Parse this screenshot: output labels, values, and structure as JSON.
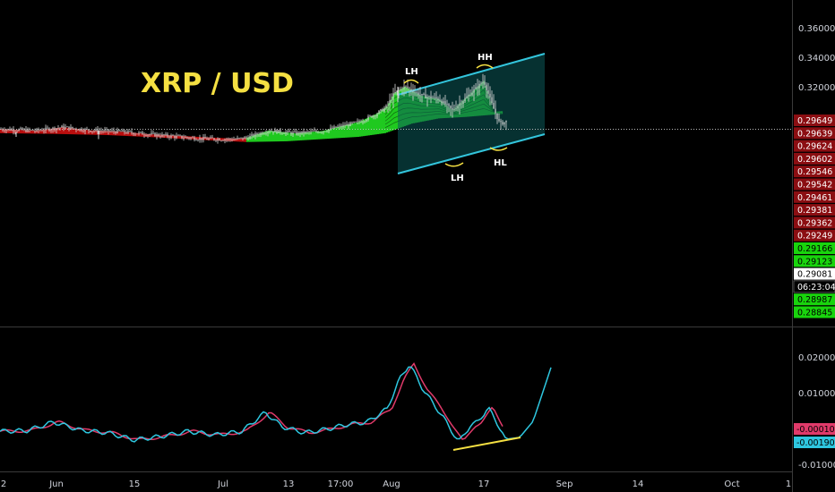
{
  "chart_data": [
    {
      "type": "candlestick",
      "title": "XRP / USD",
      "title_color": "#f5e042",
      "ylim": [
        0.284,
        0.372
      ],
      "y_ticks": [
        "0.36000",
        "0.34000",
        "0.32000"
      ],
      "price_tags": [
        {
          "value": "0.29649",
          "color": "#8b0e12",
          "text_color": "#ffffff"
        },
        {
          "value": "0.29639",
          "color": "#8b0e12",
          "text_color": "#ffffff"
        },
        {
          "value": "0.29624",
          "color": "#8b0e12",
          "text_color": "#ffffff"
        },
        {
          "value": "0.29602",
          "color": "#8b0e12",
          "text_color": "#ffffff"
        },
        {
          "value": "0.29546",
          "color": "#8b0e12",
          "text_color": "#ffffff"
        },
        {
          "value": "0.29542",
          "color": "#8b0e12",
          "text_color": "#ffffff"
        },
        {
          "value": "0.29461",
          "color": "#8b0e12",
          "text_color": "#ffffff"
        },
        {
          "value": "0.29381",
          "color": "#8b0e12",
          "text_color": "#ffffff"
        },
        {
          "value": "0.29362",
          "color": "#8b0e12",
          "text_color": "#ffffff"
        },
        {
          "value": "0.29249",
          "color": "#8b0e12",
          "text_color": "#ffffff"
        },
        {
          "value": "0.29166",
          "color": "#19d40d",
          "text_color": "#000000"
        },
        {
          "value": "0.29123",
          "color": "#19d40d",
          "text_color": "#000000"
        },
        {
          "value": "0.29081",
          "color": "#ffffff",
          "text_color": "#000000"
        },
        {
          "value": "06:23:04",
          "color": "#000000",
          "text_color": "#ffffff"
        },
        {
          "value": "0.28987",
          "color": "#19d40d",
          "text_color": "#000000"
        },
        {
          "value": "0.28845",
          "color": "#19d40d",
          "text_color": "#000000"
        }
      ],
      "annotations": [
        "LH",
        "HH",
        "LH",
        "HL"
      ],
      "channel_color": "#33c5dc",
      "colors": {
        "up": "#22dd22",
        "down": "#cc1010",
        "candle": "#d8d8d8"
      }
    },
    {
      "type": "line",
      "ylim": [
        -0.011,
        0.024
      ],
      "y_ticks": [
        "0.02000",
        "0.01000",
        "-0.01000"
      ],
      "series": [
        {
          "color": "#2ec7e0"
        },
        {
          "color": "#e03a6a"
        }
      ],
      "value_tags": [
        {
          "value": "-0.00010",
          "color": "#e03a6a"
        },
        {
          "value": "-0.00190",
          "color": "#2ec7e0"
        }
      ],
      "trendline_color": "#f5e042"
    }
  ],
  "x_ticks": [
    "2",
    "Jun",
    "15",
    "Jul",
    "13",
    "17:00",
    "Aug",
    "17",
    "Sep",
    "14",
    "Oct",
    "1"
  ]
}
